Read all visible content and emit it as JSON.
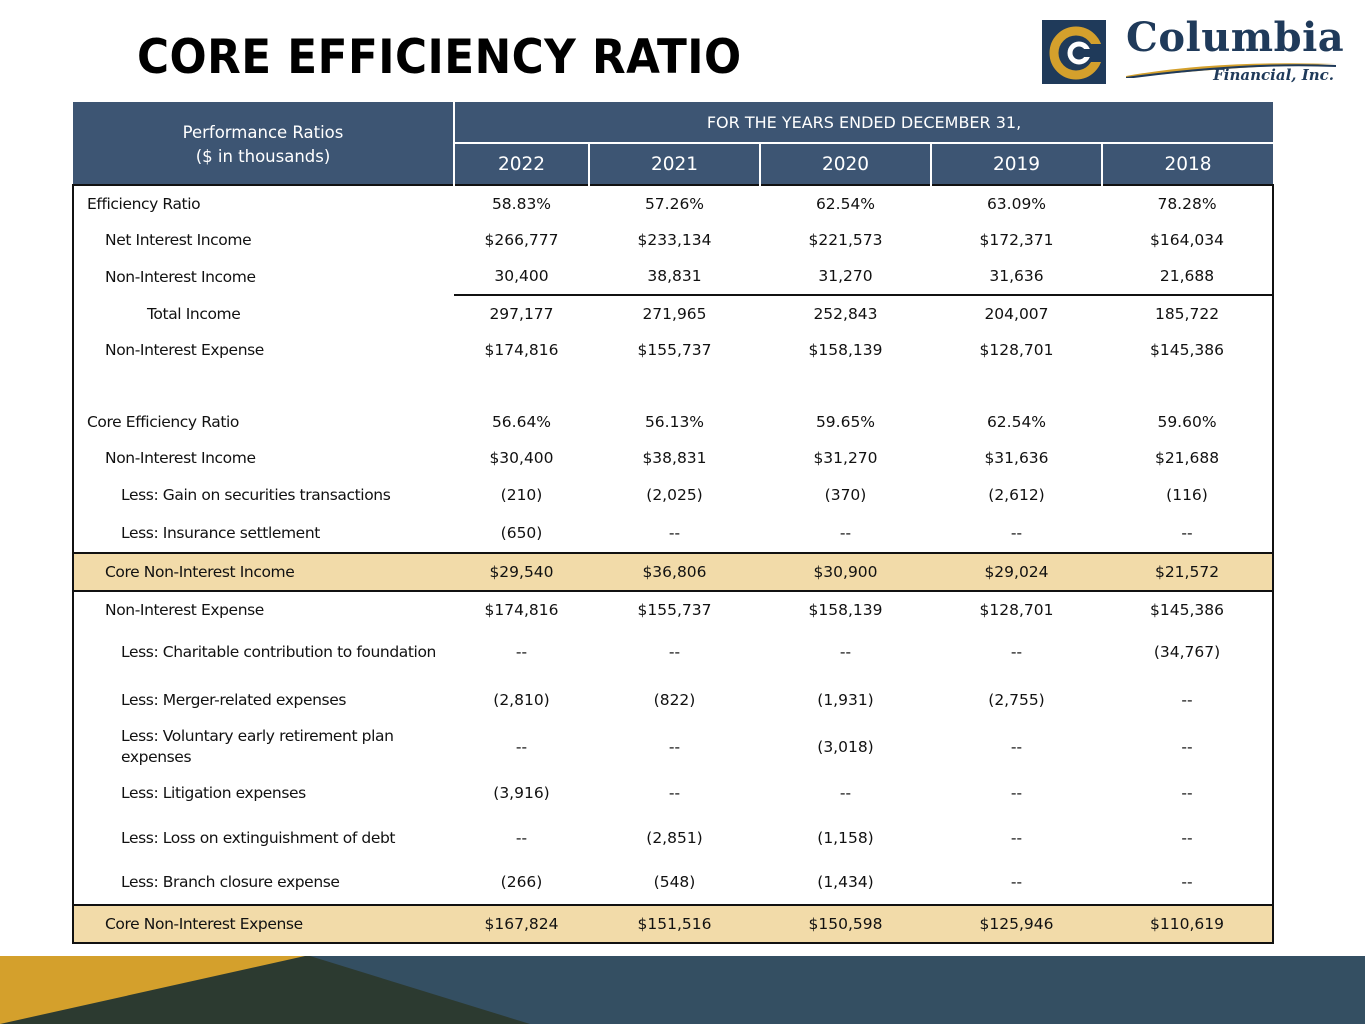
{
  "title": "CORE EFFICIENCY RATIO",
  "logo": {
    "name": "Columbia",
    "subtitle": "Financial, Inc."
  },
  "colors": {
    "header_bg": "#3d5573",
    "highlight_bg": "#f2dba9",
    "band_navy": "#344f62",
    "band_gold": "#d4a02c",
    "band_dark": "#2c3a30"
  },
  "table": {
    "header_label_line1": "Performance Ratios",
    "header_label_line2": "($ in thousands)",
    "group_header": "FOR THE YEARS ENDED DECEMBER 31,",
    "years": [
      "2022",
      "2021",
      "2020",
      "2019",
      "2018"
    ],
    "rows": [
      {
        "label": "Efficiency Ratio",
        "values": [
          "58.83%",
          "57.26%",
          "62.54%",
          "63.09%",
          "78.28%"
        ]
      },
      {
        "label": "Net Interest Income",
        "values": [
          "$266,777",
          "$233,134",
          "$221,573",
          "$172,371",
          "$164,034"
        ]
      },
      {
        "label": "Non-Interest Income",
        "values": [
          "30,400",
          "38,831",
          "31,270",
          "31,636",
          "21,688"
        ]
      },
      {
        "label": "Total Income",
        "values": [
          "297,177",
          "271,965",
          "252,843",
          "204,007",
          "185,722"
        ]
      },
      {
        "label": "Non-Interest Expense",
        "values": [
          "$174,816",
          "$155,737",
          "$158,139",
          "$128,701",
          "$145,386"
        ]
      },
      {
        "label": "Core Efficiency Ratio",
        "values": [
          "56.64%",
          "56.13%",
          "59.65%",
          "62.54%",
          "59.60%"
        ]
      },
      {
        "label": "Non-Interest Income",
        "values": [
          "$30,400",
          "$38,831",
          "$31,270",
          "$31,636",
          "$21,688"
        ]
      },
      {
        "label": "Less: Gain on securities transactions",
        "values": [
          "(210)",
          "(2,025)",
          "(370)",
          "(2,612)",
          "(116)"
        ]
      },
      {
        "label": "Less: Insurance settlement",
        "values": [
          "(650)",
          "--",
          "--",
          "--",
          "--"
        ]
      },
      {
        "label": "Core Non-Interest Income",
        "values": [
          "$29,540",
          "$36,806",
          "$30,900",
          "$29,024",
          "$21,572"
        ]
      },
      {
        "label": "Non-Interest Expense",
        "values": [
          "$174,816",
          "$155,737",
          "$158,139",
          "$128,701",
          "$145,386"
        ]
      },
      {
        "label": "Less: Charitable contribution to foundation",
        "values": [
          "--",
          "--",
          "--",
          "--",
          "(34,767)"
        ]
      },
      {
        "label": "Less: Merger-related expenses",
        "values": [
          "(2,810)",
          "(822)",
          "(1,931)",
          "(2,755)",
          "--"
        ]
      },
      {
        "label": "Less: Voluntary early retirement plan expenses",
        "values": [
          "--",
          "--",
          "(3,018)",
          "--",
          "--"
        ]
      },
      {
        "label": "Less: Litigation expenses",
        "values": [
          "(3,916)",
          "--",
          "--",
          "--",
          "--"
        ]
      },
      {
        "label": "Less: Loss on extinguishment of debt",
        "values": [
          "--",
          "(2,851)",
          "(1,158)",
          "--",
          "--"
        ]
      },
      {
        "label": "Less: Branch closure expense",
        "values": [
          "(266)",
          "(548)",
          "(1,434)",
          "--",
          "--"
        ]
      },
      {
        "label": "Core Non-Interest Expense",
        "values": [
          "$167,824",
          "$151,516",
          "$150,598",
          "$125,946",
          "$110,619"
        ]
      }
    ]
  }
}
